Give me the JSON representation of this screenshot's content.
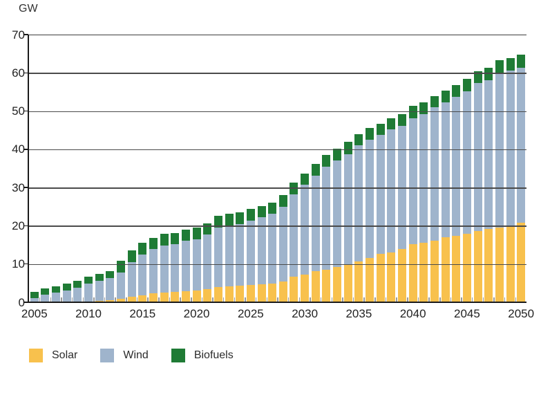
{
  "chart_data": {
    "type": "bar",
    "stacked": true,
    "unit_label": "GW",
    "xlabel": "",
    "ylabel": "GW",
    "ylim": [
      0,
      70
    ],
    "ytick_step": 10,
    "ytick_labels": [
      "0",
      "10",
      "20",
      "30",
      "40",
      "50",
      "60",
      "70"
    ],
    "xtick_labels": [
      "2005",
      "2010",
      "2015",
      "2020",
      "2025",
      "2030",
      "2035",
      "2040",
      "2045",
      "2050"
    ],
    "grid": true,
    "gridlines_over_bars": true,
    "legend_position": "bottom-left",
    "years": [
      2005,
      2006,
      2007,
      2008,
      2009,
      2010,
      2011,
      2012,
      2013,
      2014,
      2015,
      2016,
      2017,
      2018,
      2019,
      2020,
      2021,
      2022,
      2023,
      2024,
      2025,
      2026,
      2027,
      2028,
      2029,
      2030,
      2031,
      2032,
      2033,
      2034,
      2035,
      2036,
      2037,
      2038,
      2039,
      2040,
      2041,
      2042,
      2043,
      2044,
      2045,
      2046,
      2047,
      2048,
      2049,
      2050
    ],
    "series": [
      {
        "name": "Solar",
        "color": "#F8C14D",
        "values": [
          0,
          0,
          0,
          0,
          0.1,
          0.1,
          0.3,
          0.5,
          0.9,
          1.4,
          1.9,
          2.3,
          2.5,
          2.7,
          2.9,
          3.1,
          3.5,
          4.0,
          4.1,
          4.3,
          4.6,
          4.7,
          4.9,
          5.5,
          6.7,
          7.3,
          8.1,
          8.5,
          9.3,
          9.9,
          10.7,
          11.6,
          12.7,
          13.1,
          13.9,
          15.2,
          15.5,
          16.1,
          17.0,
          17.3,
          17.9,
          18.7,
          19.1,
          19.5,
          19.7,
          20.8
        ]
      },
      {
        "name": "Wind",
        "color": "#9FB4CC",
        "values": [
          1.0,
          2.0,
          2.5,
          3.0,
          3.7,
          4.8,
          5.3,
          5.9,
          6.9,
          9.1,
          10.6,
          11.6,
          12.4,
          12.5,
          13.2,
          13.4,
          14.3,
          15.6,
          16.0,
          16.2,
          16.8,
          17.5,
          18.2,
          19.4,
          21.5,
          23.4,
          25.0,
          27.0,
          27.7,
          28.9,
          30.3,
          30.9,
          31.0,
          32.1,
          32.2,
          33.0,
          33.7,
          35.0,
          35.2,
          36.4,
          37.3,
          38.6,
          39.0,
          40.6,
          40.9,
          40.5
        ]
      },
      {
        "name": "Biofuels",
        "color": "#1F7B35",
        "values": [
          1.8,
          1.7,
          1.7,
          1.8,
          1.8,
          1.8,
          1.9,
          1.8,
          3.0,
          3.0,
          3.0,
          3.0,
          3.0,
          2.9,
          2.9,
          3.0,
          2.9,
          3.1,
          3.0,
          3.0,
          3.0,
          3.0,
          3.0,
          3.1,
          3.1,
          3.0,
          3.0,
          3.0,
          3.1,
          3.1,
          3.0,
          3.0,
          3.0,
          3.0,
          3.1,
          3.1,
          3.0,
          2.8,
          3.1,
          3.1,
          3.2,
          3.2,
          3.2,
          3.2,
          3.2,
          3.4
        ]
      }
    ]
  },
  "legend": {
    "items": [
      {
        "label": "Solar"
      },
      {
        "label": "Wind"
      },
      {
        "label": "Biofuels"
      }
    ]
  }
}
